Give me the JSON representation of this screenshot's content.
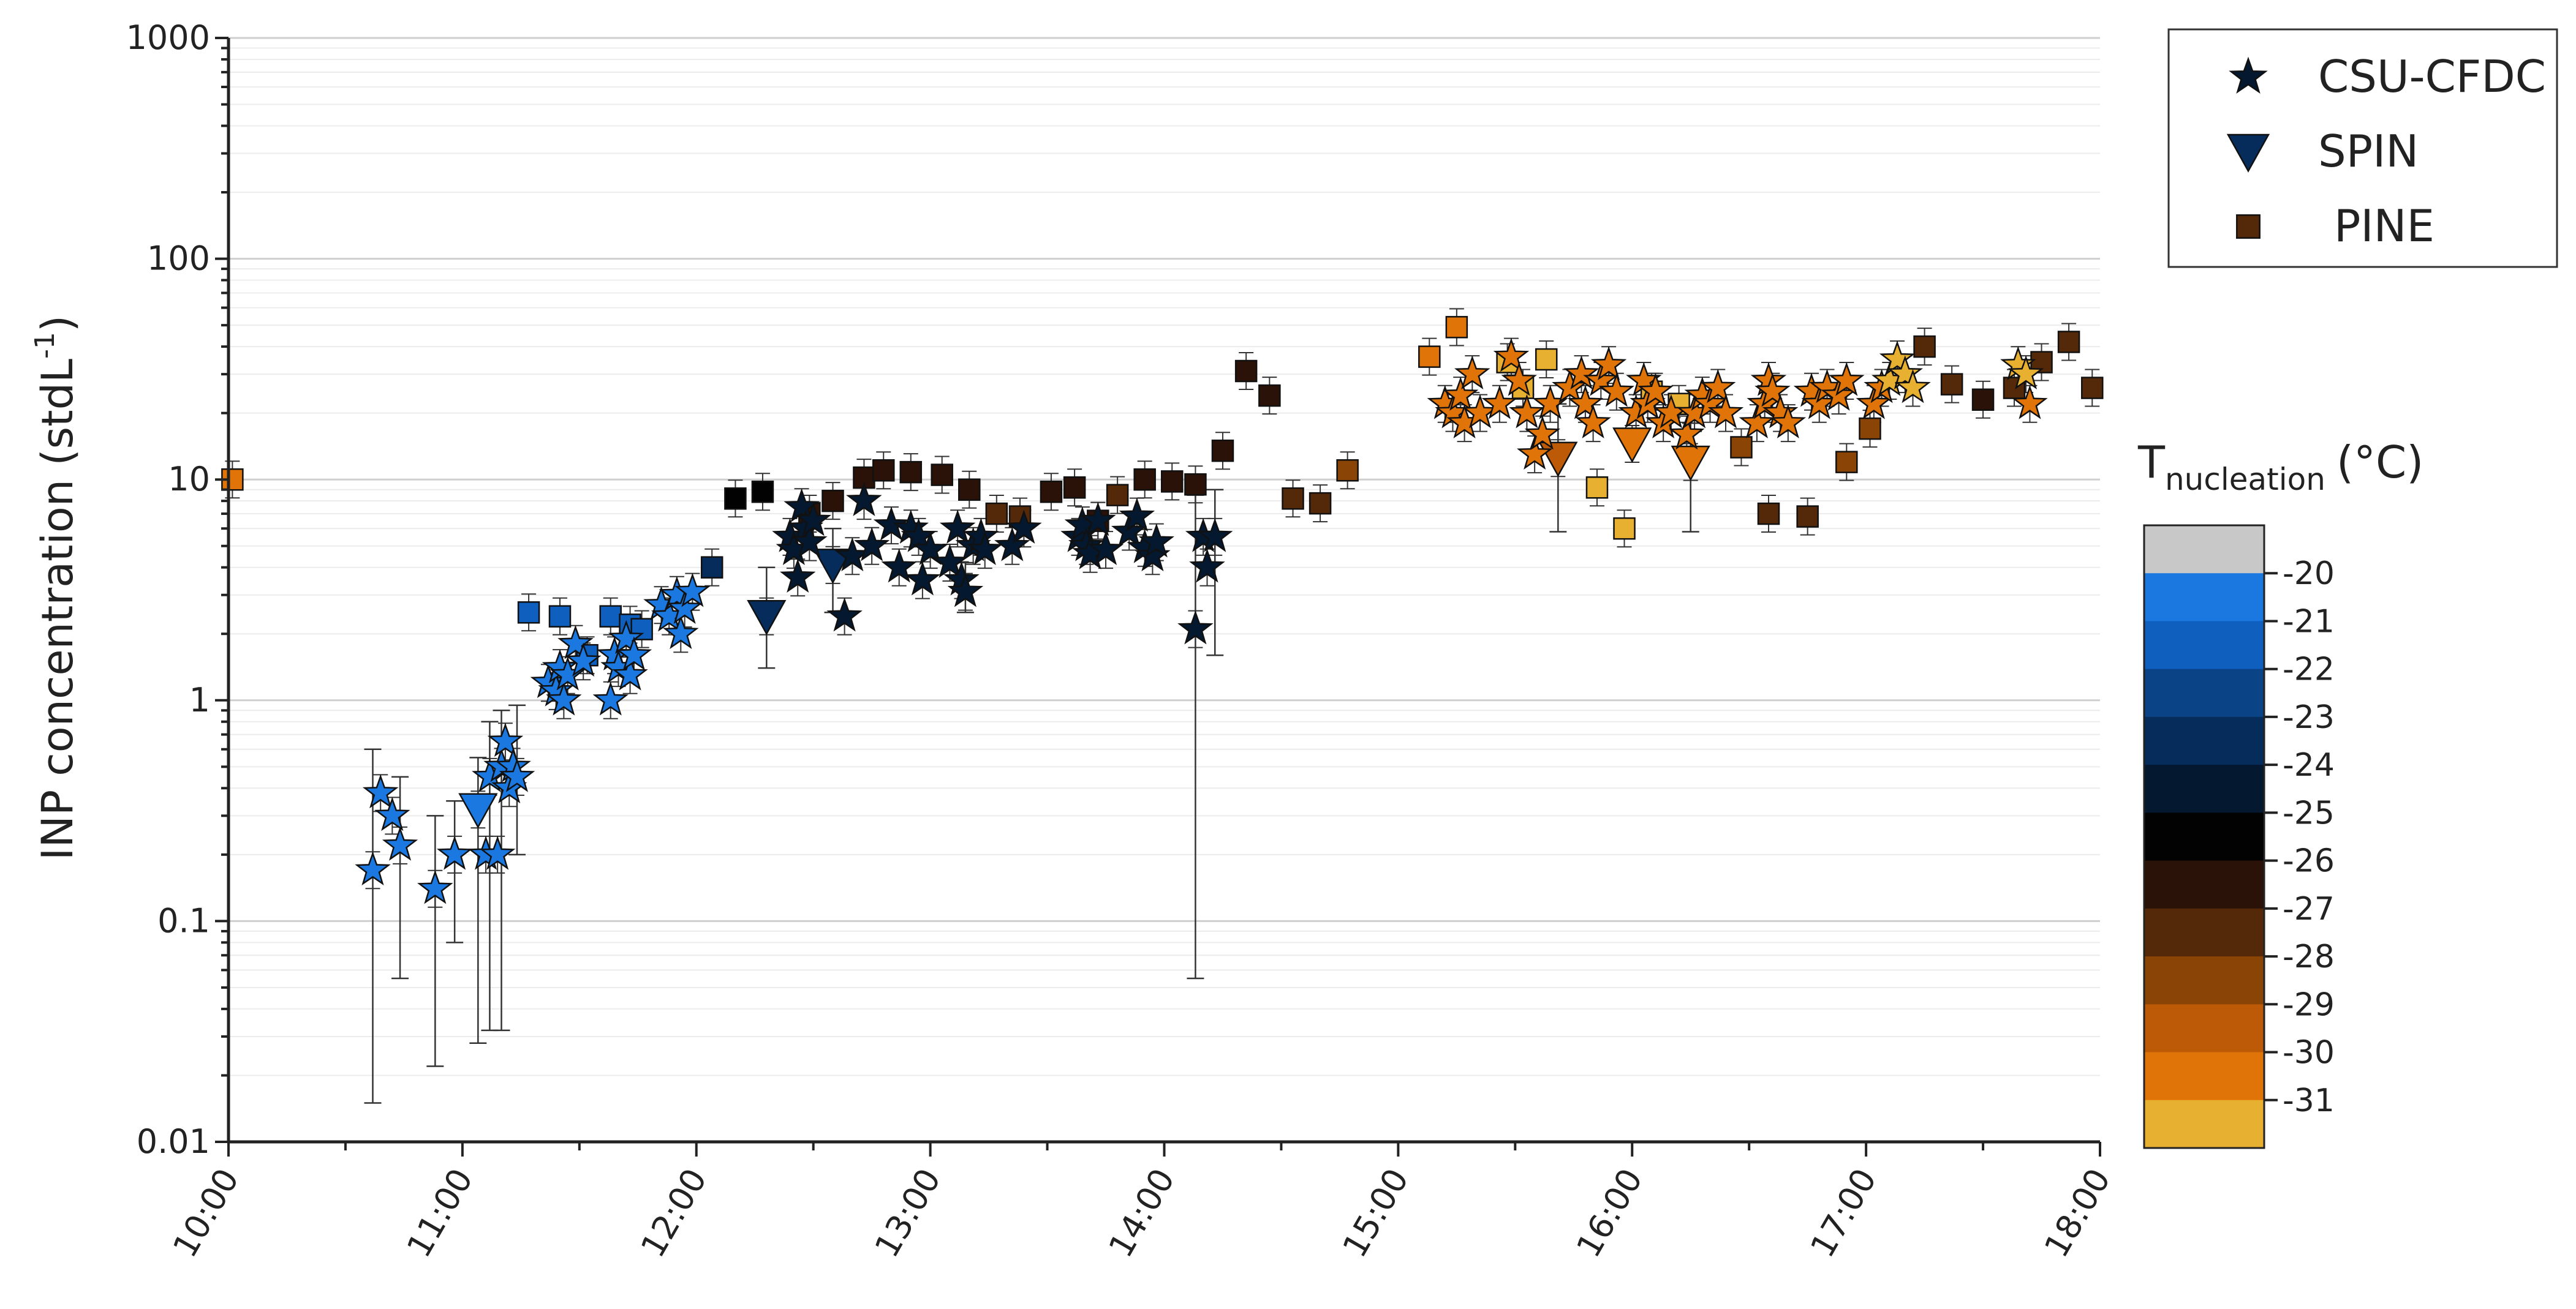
{
  "chart_data": {
    "type": "scatter",
    "title": "",
    "xlabel": "",
    "ylabel": "INP concentration (stdL",
    "ylabel_superscript": "-1",
    "ylabel_close": ")",
    "yscale": "log",
    "ylim": [
      0.01,
      1000
    ],
    "xlim": [
      "10:00",
      "18:00"
    ],
    "x_ticks": [
      "10:00",
      "11:00",
      "12:00",
      "13:00",
      "14:00",
      "15:00",
      "16:00",
      "17:00",
      "18:00"
    ],
    "y_ticks": [
      "0.01",
      "0.1",
      "1",
      "10",
      "100",
      "1000"
    ],
    "grid": "horizontal",
    "legend": {
      "placement": "top-right",
      "entries": [
        {
          "name": "CSU-CFDC",
          "marker": "star"
        },
        {
          "name": "SPIN",
          "marker": "triangle-down"
        },
        {
          "name": "PINE",
          "marker": "square"
        }
      ]
    },
    "colorbar": {
      "title_main": "T",
      "title_sub": "nucleation",
      "title_unit": "(°C)",
      "ticks": [
        "-20",
        "-21",
        "-22",
        "-23",
        "-24",
        "-25",
        "-26",
        "-27",
        "-28",
        "-29",
        "-30",
        "-31"
      ],
      "colors": [
        "#c8c8c8",
        "#1a78e0",
        "#0f5fbf",
        "#0a4486",
        "#062c5c",
        "#04182f",
        "#020202",
        "#2a1208",
        "#54290a",
        "#8a4405",
        "#bc5a08",
        "#e07408",
        "#e8b030"
      ]
    },
    "series": [
      {
        "name": "CSU-CFDC",
        "marker": "star",
        "points": [
          [
            "10:37",
            0.17,
            "#1a78e0"
          ],
          [
            "10:39",
            0.38,
            "#1a78e0"
          ],
          [
            "10:42",
            0.3,
            "#1a78e0"
          ],
          [
            "10:44",
            0.22,
            "#1a78e0"
          ],
          [
            "10:53",
            0.14,
            "#1a78e0"
          ],
          [
            "10:58",
            0.2,
            "#1a78e0"
          ],
          [
            "11:06",
            0.2,
            "#1a78e0"
          ],
          [
            "11:07",
            0.45,
            "#1a78e0"
          ],
          [
            "11:09",
            0.2,
            "#1a78e0"
          ],
          [
            "11:10",
            0.5,
            "#1a78e0"
          ],
          [
            "11:11",
            0.65,
            "#1a78e0"
          ],
          [
            "11:12",
            0.4,
            "#1a78e0"
          ],
          [
            "11:13",
            0.5,
            "#1a78e0"
          ],
          [
            "11:14",
            0.45,
            "#1a78e0"
          ],
          [
            "11:22",
            1.2,
            "#1a78e0"
          ],
          [
            "11:24",
            1.1,
            "#1a78e0"
          ],
          [
            "11:25",
            1.4,
            "#1a78e0"
          ],
          [
            "11:26",
            1.0,
            "#1a78e0"
          ],
          [
            "11:27",
            1.3,
            "#1a78e0"
          ],
          [
            "11:29",
            1.8,
            "#1a78e0"
          ],
          [
            "11:31",
            1.5,
            "#1a78e0"
          ],
          [
            "11:38",
            1.0,
            "#1a78e0"
          ],
          [
            "11:39",
            1.6,
            "#1a78e0"
          ],
          [
            "11:40",
            1.4,
            "#1a78e0"
          ],
          [
            "11:42",
            1.9,
            "#1a78e0"
          ],
          [
            "11:43",
            1.3,
            "#1a78e0"
          ],
          [
            "11:44",
            1.6,
            "#1a78e0"
          ],
          [
            "11:51",
            2.7,
            "#1a78e0"
          ],
          [
            "11:53",
            2.4,
            "#1a78e0"
          ],
          [
            "11:55",
            3.0,
            "#1a78e0"
          ],
          [
            "11:56",
            2.0,
            "#1a78e0"
          ],
          [
            "11:57",
            2.6,
            "#1a78e0"
          ],
          [
            "11:59",
            3.1,
            "#1a78e0"
          ],
          [
            "12:24",
            5.5,
            "#04182f"
          ],
          [
            "12:25",
            4.8,
            "#04182f"
          ],
          [
            "12:26",
            3.6,
            "#04182f"
          ],
          [
            "12:27",
            7.5,
            "#04182f"
          ],
          [
            "12:28",
            6.0,
            "#04182f"
          ],
          [
            "12:29",
            5.2,
            "#04182f"
          ],
          [
            "12:30",
            6.5,
            "#04182f"
          ],
          [
            "12:38",
            2.4,
            "#04182f"
          ],
          [
            "12:40",
            4.5,
            "#04182f"
          ],
          [
            "12:43",
            8.0,
            "#04182f"
          ],
          [
            "12:45",
            5.0,
            "#04182f"
          ],
          [
            "12:50",
            6.2,
            "#04182f"
          ],
          [
            "12:52",
            4.0,
            "#04182f"
          ],
          [
            "12:55",
            6.0,
            "#04182f"
          ],
          [
            "12:57",
            5.5,
            "#04182f"
          ],
          [
            "12:58",
            3.5,
            "#04182f"
          ],
          [
            "13:00",
            4.8,
            "#04182f"
          ],
          [
            "13:05",
            4.2,
            "#04182f"
          ],
          [
            "13:07",
            6.0,
            "#04182f"
          ],
          [
            "13:08",
            3.5,
            "#04182f"
          ],
          [
            "13:09",
            3.1,
            "#04182f"
          ],
          [
            "13:11",
            5.0,
            "#04182f"
          ],
          [
            "13:13",
            5.5,
            "#04182f"
          ],
          [
            "13:14",
            4.8,
            "#04182f"
          ],
          [
            "13:21",
            5.0,
            "#04182f"
          ],
          [
            "13:24",
            6.0,
            "#04182f"
          ],
          [
            "13:38",
            5.5,
            "#04182f"
          ],
          [
            "13:39",
            6.2,
            "#04182f"
          ],
          [
            "13:40",
            5.0,
            "#04182f"
          ],
          [
            "13:41",
            4.6,
            "#04182f"
          ],
          [
            "13:43",
            6.5,
            "#04182f"
          ],
          [
            "13:45",
            4.8,
            "#04182f"
          ],
          [
            "13:51",
            5.8,
            "#04182f"
          ],
          [
            "13:53",
            6.8,
            "#04182f"
          ],
          [
            "13:55",
            4.9,
            "#04182f"
          ],
          [
            "13:57",
            4.5,
            "#04182f"
          ],
          [
            "13:58",
            5.2,
            "#04182f"
          ],
          [
            "14:08",
            2.1,
            "#04182f"
          ],
          [
            "14:10",
            5.5,
            "#04182f"
          ],
          [
            "14:11",
            4.0,
            "#04182f"
          ],
          [
            "14:13",
            5.5,
            "#04182f"
          ],
          [
            "15:12",
            22,
            "#e07408"
          ],
          [
            "15:14",
            20,
            "#e07408"
          ],
          [
            "15:16",
            24,
            "#e07408"
          ],
          [
            "15:17",
            18,
            "#e07408"
          ],
          [
            "15:19",
            30,
            "#e07408"
          ],
          [
            "15:21",
            20,
            "#e07408"
          ],
          [
            "15:26",
            22,
            "#e07408"
          ],
          [
            "15:29",
            36,
            "#e07408"
          ],
          [
            "15:31",
            28,
            "#e07408"
          ],
          [
            "15:33",
            20,
            "#e07408"
          ],
          [
            "15:35",
            13,
            "#e07408"
          ],
          [
            "15:37",
            16,
            "#e07408"
          ],
          [
            "15:39",
            22,
            "#e07408"
          ],
          [
            "15:44",
            26,
            "#e07408"
          ],
          [
            "15:47",
            30,
            "#e07408"
          ],
          [
            "15:48",
            22,
            "#e07408"
          ],
          [
            "15:50",
            18,
            "#e07408"
          ],
          [
            "15:52",
            28,
            "#e07408"
          ],
          [
            "15:54",
            33,
            "#e07408"
          ],
          [
            "15:56",
            25,
            "#e07408"
          ],
          [
            "16:01",
            20,
            "#e07408"
          ],
          [
            "16:03",
            28,
            "#e07408"
          ],
          [
            "16:04",
            22,
            "#e07408"
          ],
          [
            "16:06",
            25,
            "#e07408"
          ],
          [
            "16:08",
            18,
            "#e07408"
          ],
          [
            "16:10",
            20,
            "#e07408"
          ],
          [
            "16:14",
            16,
            "#e07408"
          ],
          [
            "16:16",
            20,
            "#e07408"
          ],
          [
            "16:18",
            24,
            "#e07408"
          ],
          [
            "16:20",
            22,
            "#e07408"
          ],
          [
            "16:22",
            26,
            "#e07408"
          ],
          [
            "16:24",
            20,
            "#e07408"
          ],
          [
            "16:32",
            18,
            "#e07408"
          ],
          [
            "16:34",
            22,
            "#e07408"
          ],
          [
            "16:35",
            28,
            "#e07408"
          ],
          [
            "16:36",
            25,
            "#e07408"
          ],
          [
            "16:38",
            20,
            "#e07408"
          ],
          [
            "16:40",
            18,
            "#e07408"
          ],
          [
            "16:46",
            25,
            "#e07408"
          ],
          [
            "16:48",
            22,
            "#e07408"
          ],
          [
            "16:50",
            26,
            "#e07408"
          ],
          [
            "16:53",
            24,
            "#e07408"
          ],
          [
            "16:55",
            28,
            "#e07408"
          ],
          [
            "17:02",
            22,
            "#e07408"
          ],
          [
            "17:04",
            26,
            "#e07408"
          ],
          [
            "17:06",
            28,
            "#e8b030"
          ],
          [
            "17:08",
            35,
            "#e8b030"
          ],
          [
            "17:10",
            30,
            "#e8b030"
          ],
          [
            "17:12",
            26,
            "#e8b030"
          ],
          [
            "17:39",
            33,
            "#e8b030"
          ],
          [
            "17:41",
            30,
            "#e8b030"
          ],
          [
            "17:42",
            22,
            "#e07408"
          ]
        ]
      },
      {
        "name": "SPIN",
        "marker": "triangle-down",
        "points": [
          [
            "11:04",
            0.32,
            "#1a78e0"
          ],
          [
            "12:18",
            2.4,
            "#062c5c"
          ],
          [
            "12:35",
            4.1,
            "#062c5c"
          ],
          [
            "15:41",
            12.5,
            "#bc5a08"
          ],
          [
            "16:00",
            14.5,
            "#e07408"
          ],
          [
            "16:15",
            12,
            "#e07408"
          ]
        ]
      },
      {
        "name": "PINE",
        "marker": "square",
        "points": [
          [
            "10:01",
            10,
            "#e07408"
          ],
          [
            "11:17",
            2.5,
            "#0f5fbf"
          ],
          [
            "11:25",
            2.4,
            "#0f5fbf"
          ],
          [
            "11:32",
            1.6,
            "#0f5fbf"
          ],
          [
            "11:38",
            2.4,
            "#0f5fbf"
          ],
          [
            "11:43",
            2.2,
            "#0f5fbf"
          ],
          [
            "11:46",
            2.1,
            "#0f5fbf"
          ],
          [
            "12:04",
            4.0,
            "#062c5c"
          ],
          [
            "12:10",
            8.2,
            "#020202"
          ],
          [
            "12:17",
            8.8,
            "#020202"
          ],
          [
            "12:29",
            7.0,
            "#2a1208"
          ],
          [
            "12:35",
            8.0,
            "#2a1208"
          ],
          [
            "12:43",
            10.2,
            "#2a1208"
          ],
          [
            "12:48",
            11.0,
            "#2a1208"
          ],
          [
            "12:55",
            10.8,
            "#2a1208"
          ],
          [
            "13:03",
            10.5,
            "#2a1208"
          ],
          [
            "13:10",
            9.0,
            "#2a1208"
          ],
          [
            "13:17",
            7.0,
            "#54290a"
          ],
          [
            "13:23",
            6.8,
            "#54290a"
          ],
          [
            "13:31",
            8.8,
            "#2a1208"
          ],
          [
            "13:37",
            9.2,
            "#2a1208"
          ],
          [
            "13:43",
            6.5,
            "#2a1208"
          ],
          [
            "13:48",
            8.5,
            "#54290a"
          ],
          [
            "13:55",
            10.0,
            "#2a1208"
          ],
          [
            "14:02",
            9.8,
            "#2a1208"
          ],
          [
            "14:08",
            9.5,
            "#2a1208"
          ],
          [
            "14:15",
            13.5,
            "#2a1208"
          ],
          [
            "14:21",
            31,
            "#2a1208"
          ],
          [
            "14:27",
            24,
            "#2a1208"
          ],
          [
            "14:33",
            8.2,
            "#54290a"
          ],
          [
            "14:40",
            7.8,
            "#54290a"
          ],
          [
            "14:47",
            11,
            "#8a4405"
          ],
          [
            "15:08",
            36,
            "#e07408"
          ],
          [
            "15:15",
            49,
            "#e07408"
          ],
          [
            "15:28",
            34,
            "#e8b030"
          ],
          [
            "15:32",
            26,
            "#e8b030"
          ],
          [
            "15:38",
            35,
            "#e8b030"
          ],
          [
            "15:51",
            9.2,
            "#e8b030"
          ],
          [
            "15:58",
            6.0,
            "#e8b030"
          ],
          [
            "16:05",
            25,
            "#e8b030"
          ],
          [
            "16:12",
            22,
            "#e8b030"
          ],
          [
            "16:28",
            14,
            "#8a4405"
          ],
          [
            "16:35",
            7.0,
            "#54290a"
          ],
          [
            "16:45",
            6.8,
            "#54290a"
          ],
          [
            "16:55",
            12,
            "#8a4405"
          ],
          [
            "17:01",
            17,
            "#8a4405"
          ],
          [
            "17:15",
            40,
            "#54290a"
          ],
          [
            "17:22",
            27,
            "#54290a"
          ],
          [
            "17:30",
            23,
            "#2a1208"
          ],
          [
            "17:38",
            26,
            "#54290a"
          ],
          [
            "17:45",
            34,
            "#54290a"
          ],
          [
            "17:52",
            42,
            "#54290a"
          ],
          [
            "17:58",
            26,
            "#54290a"
          ]
        ]
      }
    ],
    "error_bars": [
      [
        "10:37",
        0.015,
        0.6
      ],
      [
        "10:44",
        0.055,
        0.45
      ],
      [
        "10:53",
        0.022,
        0.3
      ],
      [
        "10:58",
        0.08,
        0.35
      ],
      [
        "11:04",
        0.028,
        0.55
      ],
      [
        "11:07",
        0.032,
        0.8
      ],
      [
        "11:10",
        0.032,
        0.9
      ],
      [
        "11:14",
        0.2,
        0.95
      ],
      [
        "12:18",
        1.4,
        4.0
      ],
      [
        "12:35",
        2.5,
        6.0
      ],
      [
        "13:09",
        2.5,
        4.2
      ],
      [
        "14:08",
        0.055,
        8.5
      ],
      [
        "14:13",
        1.6,
        9.0
      ],
      [
        "15:41",
        5.8,
        22
      ],
      [
        "16:15",
        5.8,
        18
      ]
    ]
  }
}
